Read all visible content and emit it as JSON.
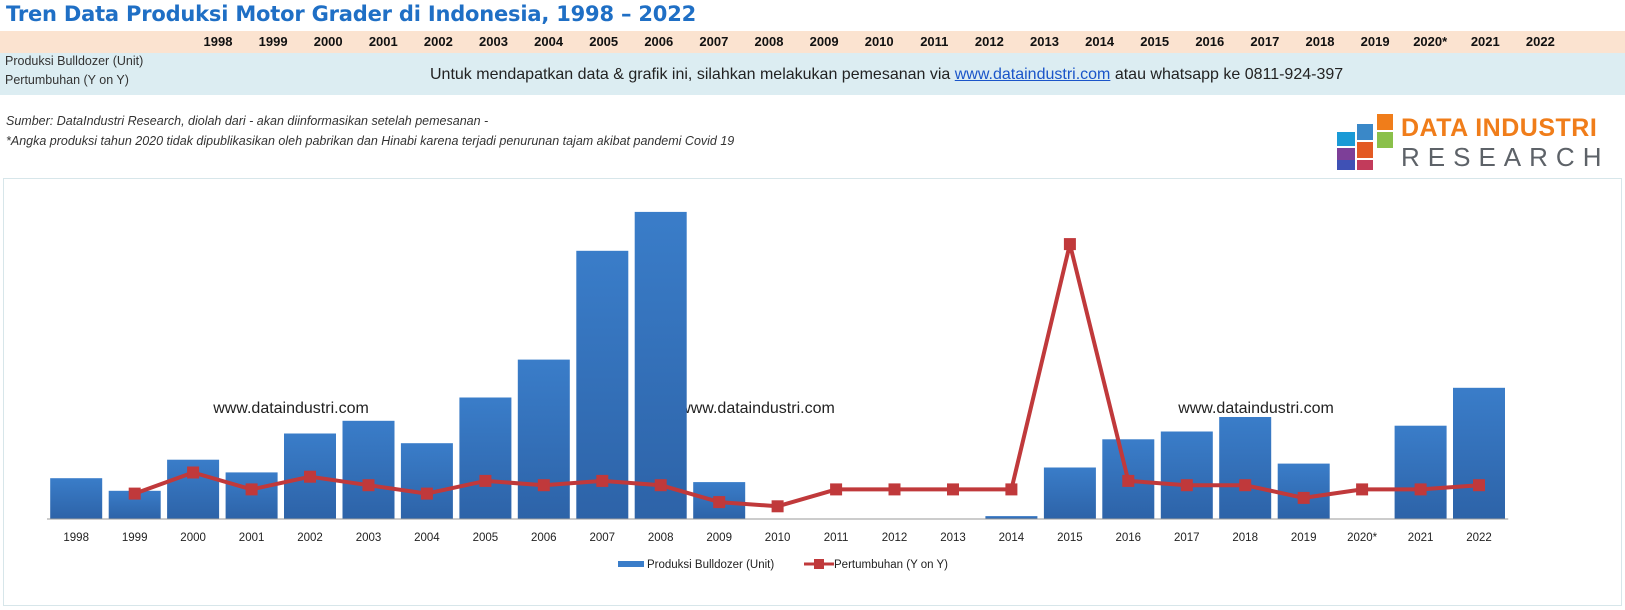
{
  "page": {
    "title": "Tren Data Produksi Motor Grader di Indonesia, 1998 – 2022",
    "row_label_1": "Produksi Bulldozer (Unit)",
    "row_label_2": "Pertumbuhan (Y on Y)",
    "notice_before": "Untuk mendapatkan data & grafik ini, silahkan melakukan pemesanan via ",
    "notice_link": "www.dataindustri.com",
    "notice_after": " atau whatsapp ke 0811-924-397",
    "source_line": "Sumber: DataIndustri Research, diolah dari - akan diinformasikan setelah pemesanan -",
    "note_line": "*Angka produksi tahun 2020 tidak dipublikasikan oleh pabrikan dan Hinabi karena terjadi penurunan tajam akibat pandemi Covid 19",
    "watermarks": [
      "www.dataindustri.com",
      "www.dataindustri.com",
      "www.dataindustri.com"
    ]
  },
  "logo": {
    "line1": "DATA INDUSTRI",
    "line2": "RESEARCH",
    "colors": [
      "#f07d1a",
      "#3a88c8",
      "#8ac04a",
      "#1a9ad6",
      "#e35a24",
      "#7d3f98",
      "#c23b5b",
      "#3f51b5"
    ]
  },
  "colors": {
    "bar": "#3a7dc9",
    "bar_dark": "#2d63a8",
    "line": "#c0393b",
    "title": "#1f6fc5"
  },
  "chart_data": {
    "type": "bar",
    "categories": [
      "1998",
      "1999",
      "2000",
      "2001",
      "2002",
      "2003",
      "2004",
      "2005",
      "2006",
      "2007",
      "2008",
      "2009",
      "2010",
      "2011",
      "2012",
      "2013",
      "2014",
      "2015",
      "2016",
      "2017",
      "2018",
      "2019",
      "2020*",
      "2021",
      "2022"
    ],
    "series": [
      {
        "name": "Produksi Bulldozer (Unit)",
        "type": "bar",
        "values": [
          42,
          29,
          61,
          48,
          88,
          101,
          78,
          125,
          164,
          276,
          316,
          38,
          0,
          0,
          0,
          0,
          3,
          53,
          82,
          90,
          105,
          57,
          0,
          96,
          135
        ]
      },
      {
        "name": "Pertumbuhan (Y on Y)",
        "type": "line",
        "values": [
          null,
          6,
          11,
          7,
          10,
          8,
          6,
          9,
          8,
          9,
          8,
          4,
          3,
          7,
          7,
          7,
          7,
          65,
          9,
          8,
          8,
          5,
          7,
          7,
          8
        ]
      }
    ],
    "ylim": [
      0,
      320
    ],
    "grid": false,
    "legend": "bottom"
  }
}
